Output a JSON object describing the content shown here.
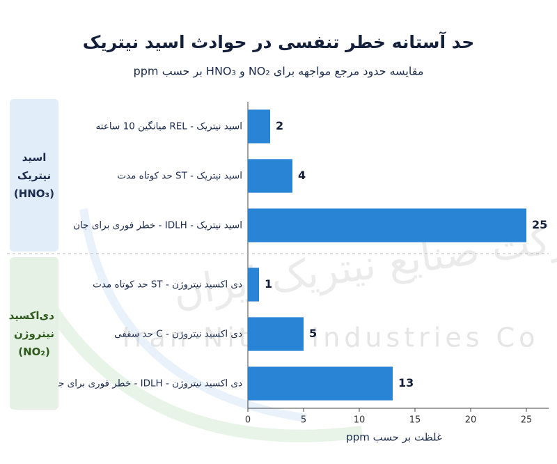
{
  "chart_data": {
    "type": "bar",
    "orientation": "horizontal",
    "title": "حد آستانه خطر تنفسی در حوادث اسید نیتریک",
    "subtitle": "مقایسه حدود مرجع مواجهه برای NO₂ و HNO₃ بر حسب ppm",
    "categories": [
      "اسید نیتریک - REL میانگین 10 ساعته",
      "اسید نیتریک - ST حد کوتاه مدت",
      "اسید نیتریک - IDLH - خطر فوری برای جان",
      "دی اکسید نیتروژن - ST حد کوتاه مدت",
      "دی اکسید نیتروژن - C حد سقفی",
      "دی اکسید نیتروژن - IDLH - خطر فوری برای جان"
    ],
    "values": [
      2,
      4,
      25,
      1,
      5,
      13
    ],
    "color": "#2a84d6",
    "groups": [
      {
        "label": "اسید نیتریک (HNO₃)",
        "background": "#e2edfa",
        "color": "#1c2b4d"
      },
      {
        "label": "دی‌اکسید نیتروژن (NO₂)",
        "background": "#e5f1e4",
        "color": "#2e5a1c"
      }
    ],
    "x_label": "غلظت بر حسب ppm",
    "xlim": [
      0,
      27
    ],
    "xticks": [
      0,
      5,
      10,
      15,
      20,
      25
    ],
    "watermark": [
      "شرکت صنایع نیتریک ایران",
      "Iran Nitric Industries Co"
    ]
  }
}
